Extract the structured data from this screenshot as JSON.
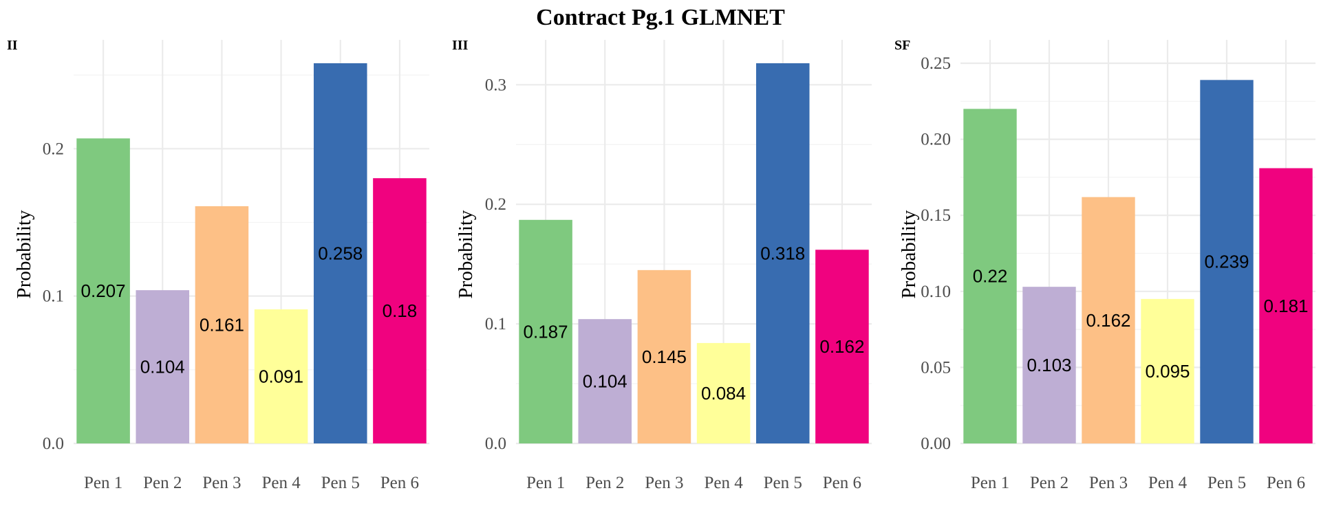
{
  "title": "Contract Pg.1 GLMNET",
  "chart_data": [
    {
      "type": "bar",
      "panel": "II",
      "ylabel": "Probability",
      "xlabel": "",
      "categories": [
        "Pen 1",
        "Pen 2",
        "Pen 3",
        "Pen 4",
        "Pen 5",
        "Pen 6"
      ],
      "values": [
        0.207,
        0.104,
        0.161,
        0.091,
        0.258,
        0.18
      ],
      "labels": [
        "0.207",
        "0.104",
        "0.161",
        "0.091",
        "0.258",
        "0.18"
      ],
      "colors": [
        "#7fc97f",
        "#beaed4",
        "#fdc086",
        "#ffff99",
        "#386cb0",
        "#f0027f"
      ],
      "ylim": [
        0,
        0.258
      ],
      "yticks": [
        0.0,
        0.1,
        0.2
      ],
      "ytick_labels": [
        "0.0",
        "0.1",
        "0.2"
      ],
      "yminor": [
        0.05,
        0.15,
        0.25
      ],
      "grid": true,
      "legend": "none"
    },
    {
      "type": "bar",
      "panel": "III",
      "ylabel": "Probability",
      "xlabel": "",
      "categories": [
        "Pen 1",
        "Pen 2",
        "Pen 3",
        "Pen 4",
        "Pen 5",
        "Pen 6"
      ],
      "values": [
        0.187,
        0.104,
        0.145,
        0.084,
        0.318,
        0.162
      ],
      "labels": [
        "0.187",
        "0.104",
        "0.145",
        "0.084",
        "0.318",
        "0.162"
      ],
      "colors": [
        "#7fc97f",
        "#beaed4",
        "#fdc086",
        "#ffff99",
        "#386cb0",
        "#f0027f"
      ],
      "ylim": [
        0,
        0.318
      ],
      "yticks": [
        0.0,
        0.1,
        0.2,
        0.3
      ],
      "ytick_labels": [
        "0.0",
        "0.1",
        "0.2",
        "0.3"
      ],
      "yminor": [
        0.05,
        0.15,
        0.25
      ],
      "grid": true,
      "legend": "none"
    },
    {
      "type": "bar",
      "panel": "SF",
      "ylabel": "Probability",
      "xlabel": "",
      "categories": [
        "Pen 1",
        "Pen 2",
        "Pen 3",
        "Pen 4",
        "Pen 5",
        "Pen 6"
      ],
      "values": [
        0.22,
        0.103,
        0.162,
        0.095,
        0.239,
        0.181
      ],
      "labels": [
        "0.22",
        "0.103",
        "0.162",
        "0.095",
        "0.239",
        "0.181"
      ],
      "colors": [
        "#7fc97f",
        "#beaed4",
        "#fdc086",
        "#ffff99",
        "#386cb0",
        "#f0027f"
      ],
      "ylim": [
        0,
        0.25
      ],
      "yticks": [
        0.0,
        0.05,
        0.1,
        0.15,
        0.2,
        0.25
      ],
      "ytick_labels": [
        "0.00",
        "0.05",
        "0.10",
        "0.15",
        "0.20",
        "0.25"
      ],
      "yminor": [
        0.025,
        0.075,
        0.125,
        0.175,
        0.225
      ],
      "grid": true,
      "legend": "none"
    }
  ]
}
